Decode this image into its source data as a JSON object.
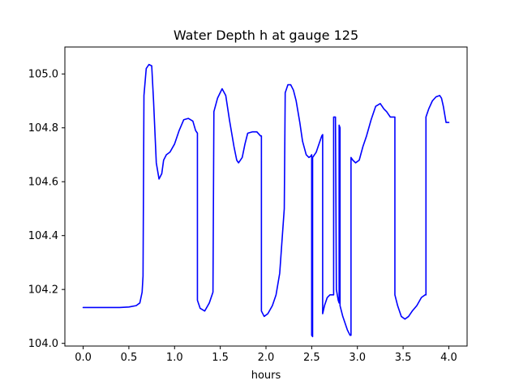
{
  "chart_data": {
    "type": "line",
    "title": "Water Depth h at gauge 125",
    "xlabel": "hours",
    "ylabel": "",
    "xlim": [
      -0.2,
      4.2
    ],
    "ylim": [
      103.99,
      105.1
    ],
    "xticks": [
      0.0,
      0.5,
      1.0,
      1.5,
      2.0,
      2.5,
      3.0,
      3.5,
      4.0
    ],
    "xtick_labels": [
      "0.0",
      "0.5",
      "1.0",
      "1.5",
      "2.0",
      "2.5",
      "3.0",
      "3.5",
      "4.0"
    ],
    "yticks": [
      104.0,
      104.2,
      104.4,
      104.6,
      104.8,
      105.0
    ],
    "ytick_labels": [
      "104.0",
      "104.2",
      "104.4",
      "104.6",
      "104.8",
      "105.0"
    ],
    "grid": false,
    "legend": "none",
    "series": [
      {
        "color": "#0000ff",
        "x": [
          0.0,
          0.2,
          0.4,
          0.5,
          0.58,
          0.62,
          0.645,
          0.655,
          0.665,
          0.69,
          0.72,
          0.75,
          0.77,
          0.8,
          0.83,
          0.86,
          0.88,
          0.91,
          0.95,
          1.0,
          1.05,
          1.1,
          1.15,
          1.2,
          1.23,
          1.25,
          1.25,
          1.28,
          1.33,
          1.38,
          1.42,
          1.43,
          1.43,
          1.47,
          1.52,
          1.56,
          1.6,
          1.65,
          1.68,
          1.7,
          1.74,
          1.77,
          1.8,
          1.85,
          1.9,
          1.94,
          1.95,
          1.95,
          1.98,
          2.02,
          2.07,
          2.11,
          2.15,
          2.2,
          2.21,
          2.21,
          2.24,
          2.27,
          2.3,
          2.33,
          2.37,
          2.4,
          2.44,
          2.47,
          2.49,
          2.5,
          2.5,
          2.51,
          2.51,
          2.55,
          2.58,
          2.61,
          2.62,
          2.62,
          2.64,
          2.67,
          2.7,
          2.73,
          2.74,
          2.74,
          2.76,
          2.77,
          2.79,
          2.8,
          2.8,
          2.81,
          2.81,
          2.84,
          2.89,
          2.92,
          2.93,
          2.93,
          2.95,
          2.98,
          3.02,
          3.06,
          3.1,
          3.15,
          3.2,
          3.25,
          3.29,
          3.32,
          3.36,
          3.4,
          3.41,
          3.41,
          3.44,
          3.48,
          3.52,
          3.56,
          3.6,
          3.65,
          3.7,
          3.74,
          3.75,
          3.75,
          3.78,
          3.82,
          3.86,
          3.9,
          3.92,
          3.94,
          3.97,
          4.0
        ],
        "y": [
          104.133,
          104.133,
          104.133,
          104.135,
          104.14,
          104.15,
          104.19,
          104.25,
          104.92,
          105.02,
          105.035,
          105.03,
          104.9,
          104.67,
          104.61,
          104.63,
          104.68,
          104.7,
          104.71,
          104.74,
          104.79,
          104.83,
          104.835,
          104.825,
          104.79,
          104.78,
          104.16,
          104.13,
          104.12,
          104.15,
          104.19,
          104.85,
          104.86,
          104.91,
          104.945,
          104.92,
          104.83,
          104.73,
          104.68,
          104.67,
          104.69,
          104.74,
          104.78,
          104.785,
          104.785,
          104.77,
          104.77,
          104.12,
          104.1,
          104.11,
          104.14,
          104.18,
          104.26,
          104.5,
          104.92,
          104.93,
          104.96,
          104.96,
          104.94,
          104.9,
          104.82,
          104.75,
          104.7,
          104.69,
          104.695,
          104.7,
          104.03,
          104.025,
          104.69,
          104.71,
          104.74,
          104.77,
          104.775,
          104.11,
          104.14,
          104.17,
          104.18,
          104.18,
          104.18,
          104.84,
          104.84,
          104.2,
          104.16,
          104.15,
          104.81,
          104.8,
          104.14,
          104.1,
          104.05,
          104.03,
          104.03,
          104.69,
          104.68,
          104.67,
          104.68,
          104.73,
          104.77,
          104.83,
          104.88,
          104.89,
          104.87,
          104.86,
          104.84,
          104.84,
          104.84,
          104.18,
          104.14,
          104.1,
          104.09,
          104.1,
          104.12,
          104.14,
          104.17,
          104.18,
          104.18,
          104.84,
          104.87,
          104.9,
          104.915,
          104.92,
          104.91,
          104.88,
          104.82,
          104.82
        ]
      }
    ]
  }
}
